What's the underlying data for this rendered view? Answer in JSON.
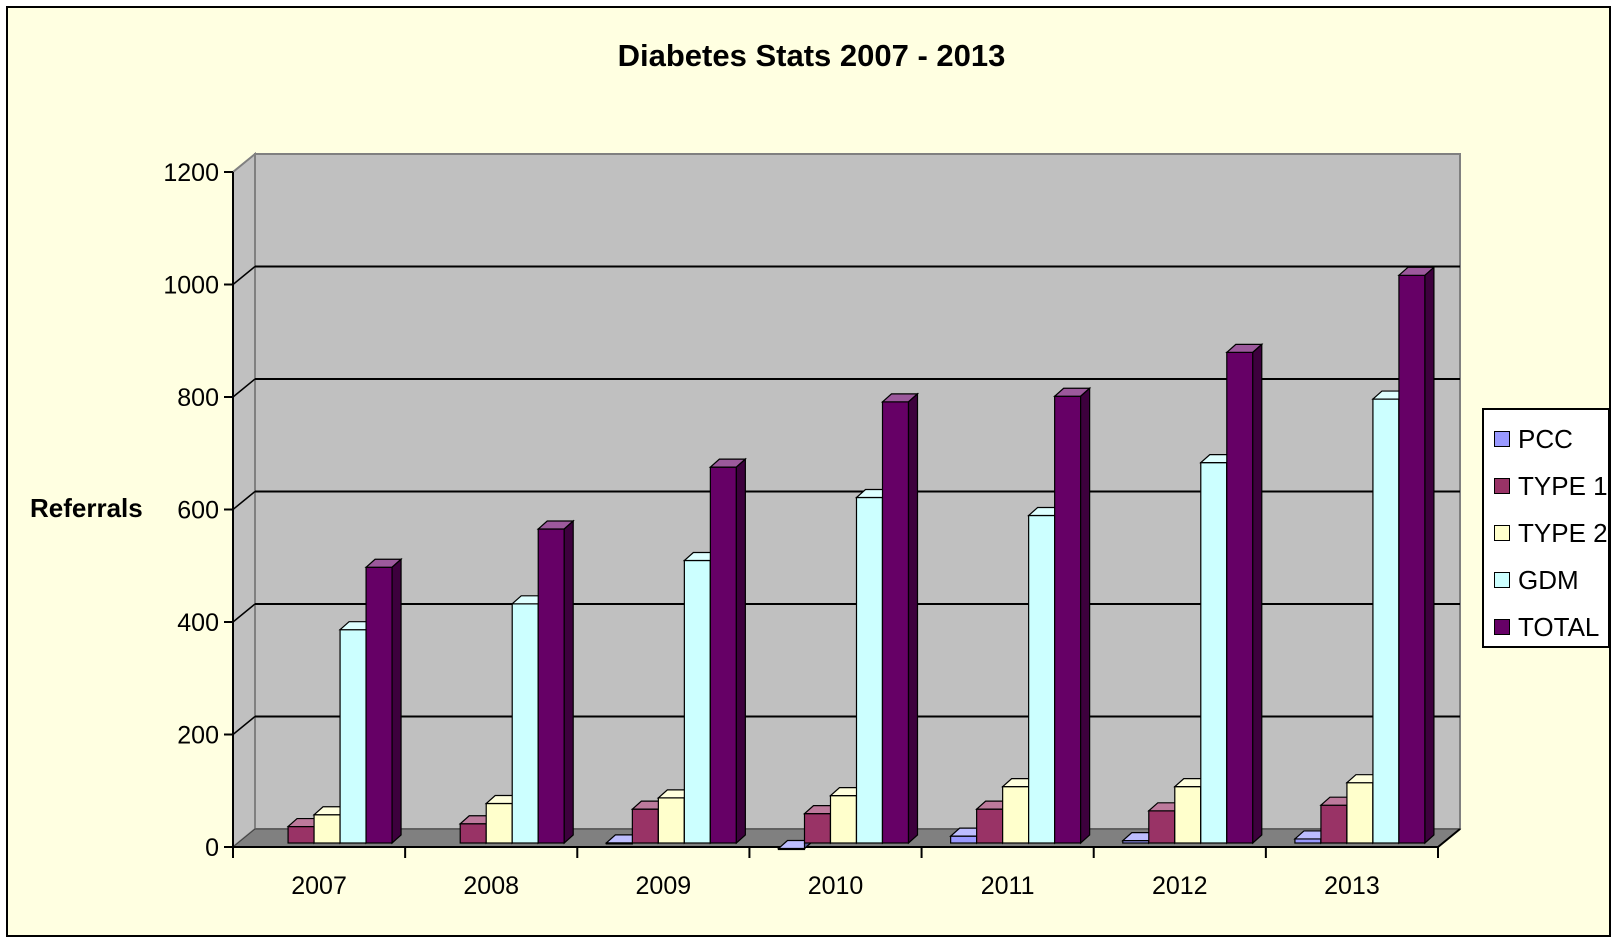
{
  "chart_data": {
    "type": "bar",
    "title": "Diabetes Stats 2007 - 2013",
    "xlabel": "",
    "ylabel": "Referrals",
    "ylim": [
      0,
      1200
    ],
    "yticks": [
      "0",
      "200",
      "400",
      "600",
      "800",
      "1000",
      "1200"
    ],
    "grid": true,
    "legend_position": "right",
    "categories": [
      "2007",
      "2008",
      "2009",
      "2010",
      "2011",
      "2012",
      "2013"
    ],
    "series": [
      {
        "name": "PCC",
        "color": "#9999ff",
        "values": [
          0,
          0,
          18,
          8,
          30,
          22,
          25
        ]
      },
      {
        "name": "TYPE 1",
        "color": "#993366",
        "values": [
          47,
          52,
          78,
          70,
          78,
          75,
          85
        ]
      },
      {
        "name": "TYPE 2",
        "color": "#ffffcc",
        "values": [
          68,
          88,
          98,
          102,
          118,
          118,
          125
        ]
      },
      {
        "name": "GDM",
        "color": "#ccffff",
        "values": [
          397,
          443,
          520,
          632,
          600,
          694,
          807
        ]
      },
      {
        "name": "TOTAL",
        "color": "#660066",
        "values": [
          508,
          576,
          686,
          802,
          812,
          890,
          1027
        ]
      }
    ]
  },
  "colors": {
    "background": "#ffffe1",
    "plot_back_wall": "#c0c0c0",
    "plot_floor": "#808080"
  }
}
